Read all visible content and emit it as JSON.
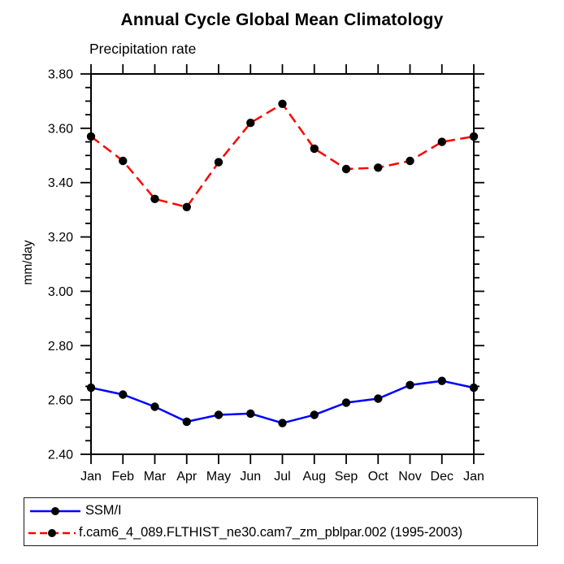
{
  "chart_data": {
    "type": "line",
    "title": "Annual Cycle Global Mean Climatology",
    "subtitle": "Precipitation rate",
    "ylabel": "mm/day",
    "xlabel": "",
    "categories": [
      "Jan",
      "Feb",
      "Mar",
      "Apr",
      "May",
      "Jun",
      "Jul",
      "Aug",
      "Sep",
      "Oct",
      "Nov",
      "Dec",
      "Jan"
    ],
    "series": [
      {
        "name": "SSM/I",
        "color": "#0000ff",
        "line_style": "solid",
        "marker": "black-filled-circle",
        "values": [
          2.645,
          2.62,
          2.575,
          2.52,
          2.545,
          2.55,
          2.515,
          2.545,
          2.59,
          2.605,
          2.655,
          2.67,
          2.645
        ]
      },
      {
        "name": "f.cam6_4_089.FLTHIST_ne30.cam7_zm_pblpar.002 (1995-2003)",
        "color": "#ff0000",
        "line_style": "dashed",
        "marker": "black-filled-circle",
        "values": [
          3.57,
          3.48,
          3.34,
          3.31,
          3.475,
          3.62,
          3.69,
          3.525,
          3.45,
          3.455,
          3.48,
          3.55,
          3.57
        ]
      }
    ],
    "ylim": [
      2.4,
      3.8
    ],
    "ytick_step": 0.2,
    "yminor_step": 0.05,
    "ytick_format_decimals": 2,
    "grid": false,
    "frame": "full-box-outward-ticks",
    "axis_color": "#000000",
    "marker_color": "#000000",
    "legend_position": "bottom-left-box"
  }
}
